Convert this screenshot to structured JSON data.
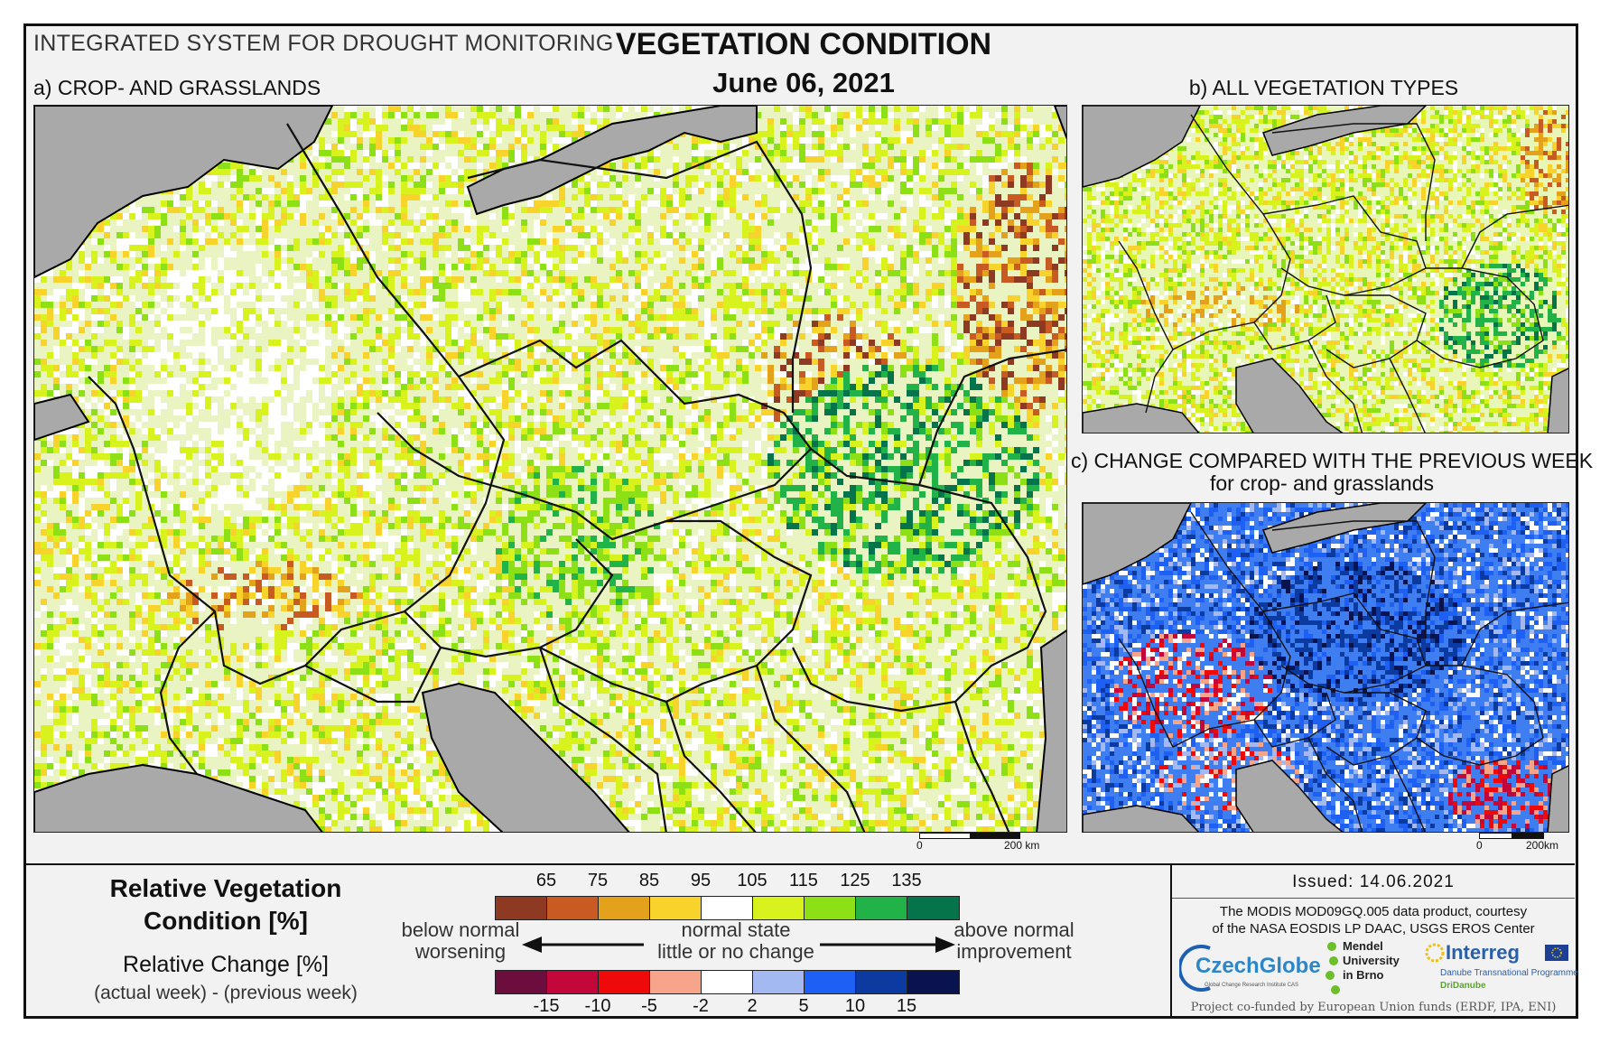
{
  "header": {
    "system": "INTEGRATED SYSTEM FOR DROUGHT MONITORING",
    "title": "VEGETATION CONDITION",
    "date": "June 06, 2021"
  },
  "panels": {
    "a_label": "a) CROP- AND GRASSLANDS",
    "b_label": "b) ALL VEGETATION TYPES",
    "c_label": "c) CHANGE COMPARED WITH THE PREVIOUS WEEK",
    "c_sublabel": "for crop- and grasslands"
  },
  "scale_bars": {
    "a": {
      "zero": "0",
      "end": "200 km"
    },
    "c": {
      "zero": "0",
      "end": "200km"
    }
  },
  "legend": {
    "rvc_title_line1": "Relative Vegetation",
    "rvc_title_line2": "Condition [%]",
    "rc_title": "Relative Change [%]",
    "rc_subtitle": "(actual week) - (previous week)",
    "rvc_ticks": [
      "65",
      "75",
      "85",
      "95",
      "105",
      "115",
      "125",
      "135"
    ],
    "rvc_colors": [
      "#8e3a22",
      "#c85b22",
      "#e3a11c",
      "#f7d32c",
      "#ffffff",
      "#d7f21c",
      "#8ee016",
      "#22b348",
      "#05744a"
    ],
    "rc_ticks": [
      "-15",
      "-10",
      "-5",
      "-2",
      "2",
      "5",
      "10",
      "15"
    ],
    "rc_colors": [
      "#6b0e3e",
      "#c4073a",
      "#ef0a0a",
      "#f7a58a",
      "#ffffff",
      "#a4b8f2",
      "#1e5ff4",
      "#0b3aa0",
      "#08134f"
    ],
    "left_label_1": "below normal",
    "left_label_2": "worsening",
    "mid_label_1": "normal state",
    "mid_label_2": "little or no change",
    "right_label_1": "above normal",
    "right_label_2": "improvement"
  },
  "info": {
    "issued": "Issued: 14.06.2021",
    "credit_1": "The MODIS MOD09GQ.005 data product, courtesy",
    "credit_2": "of the NASA EOSDIS LP DAAC, USGS EROS Center",
    "logo_czechglobe": "CzechGlobe",
    "logo_czechglobe_sub": "Global Change Research Institute CAS",
    "logo_mendel_1": "Mendel",
    "logo_mendel_2": "University",
    "logo_mendel_3": "in Brno",
    "logo_interreg": "Interreg",
    "logo_interreg_sub1": "Danube Transnational Programme",
    "logo_interreg_sub2": "DriDanube",
    "cofund": "Project co-funded by European Union funds (ERDF, IPA, ENI)"
  }
}
